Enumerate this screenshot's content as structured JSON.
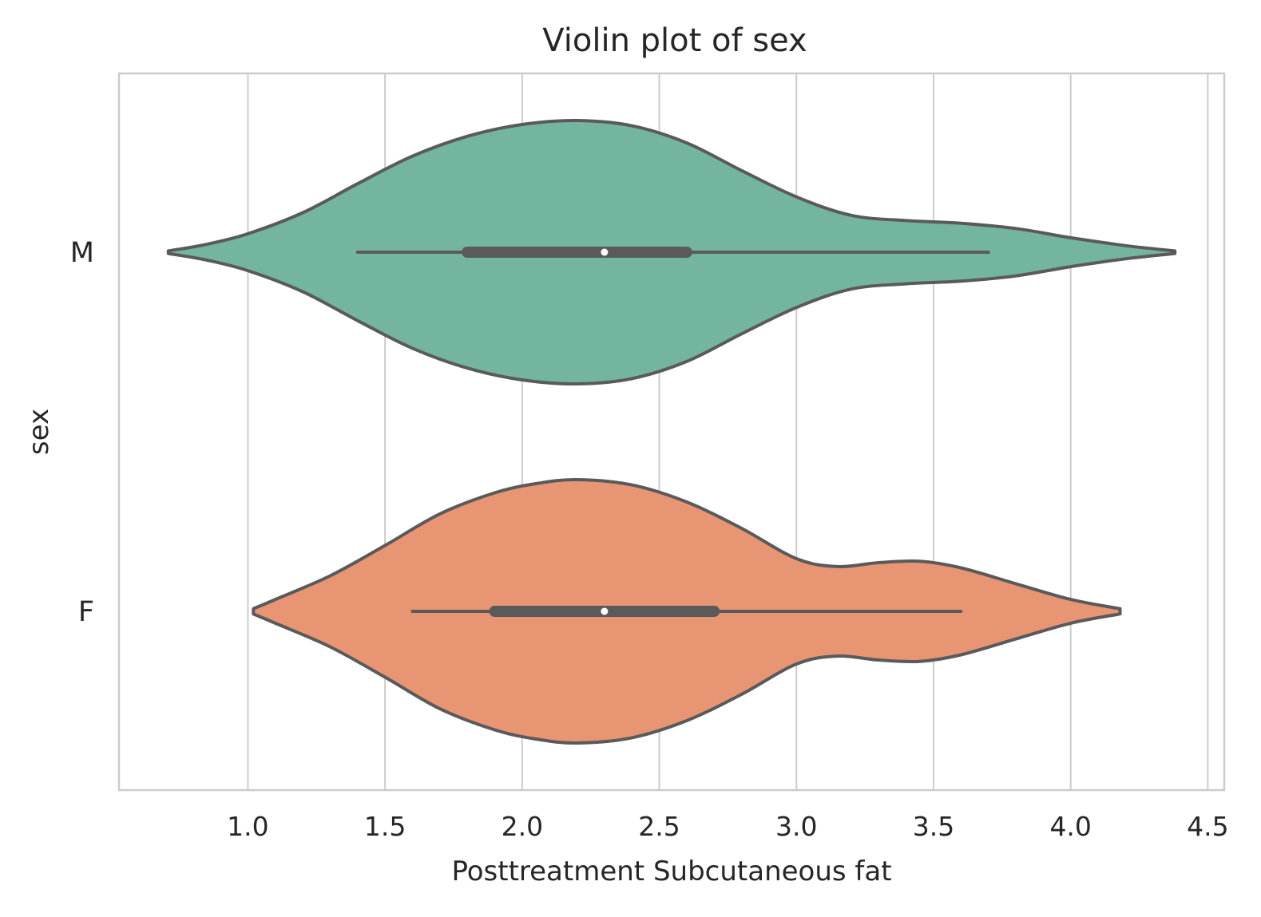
{
  "chart_data": {
    "type": "violin",
    "orientation": "horizontal",
    "title": "Violin plot of sex",
    "xlabel": "Posttreatment Subcutaneous fat",
    "ylabel": "sex",
    "xlim": [
      0.53,
      4.56
    ],
    "x_ticks": [
      "1.0",
      "1.5",
      "2.0",
      "2.5",
      "3.0",
      "3.5",
      "4.0",
      "4.5"
    ],
    "grid": "vertical",
    "categories": [
      "M",
      "F"
    ],
    "violins": [
      {
        "category": "M",
        "color": "#73b59f",
        "whisker": [
          1.4,
          3.7
        ],
        "quartiles": [
          1.8,
          2.6
        ],
        "median": 2.3,
        "density": [
          [
            0.71,
            0.01
          ],
          [
            0.85,
            0.06
          ],
          [
            1.0,
            0.14
          ],
          [
            1.2,
            0.3
          ],
          [
            1.4,
            0.52
          ],
          [
            1.6,
            0.73
          ],
          [
            1.8,
            0.88
          ],
          [
            2.0,
            0.97
          ],
          [
            2.2,
            1.0
          ],
          [
            2.4,
            0.96
          ],
          [
            2.6,
            0.83
          ],
          [
            2.8,
            0.62
          ],
          [
            3.0,
            0.42
          ],
          [
            3.2,
            0.28
          ],
          [
            3.4,
            0.24
          ],
          [
            3.6,
            0.22
          ],
          [
            3.8,
            0.18
          ],
          [
            4.0,
            0.11
          ],
          [
            4.2,
            0.05
          ],
          [
            4.38,
            0.01
          ]
        ]
      },
      {
        "category": "F",
        "color": "#e89574",
        "whisker": [
          1.6,
          3.6
        ],
        "quartiles": [
          1.9,
          2.7
        ],
        "median": 2.3,
        "density": [
          [
            1.02,
            0.02
          ],
          [
            1.1,
            0.09
          ],
          [
            1.3,
            0.27
          ],
          [
            1.5,
            0.5
          ],
          [
            1.7,
            0.74
          ],
          [
            1.9,
            0.9
          ],
          [
            2.05,
            0.97
          ],
          [
            2.2,
            1.0
          ],
          [
            2.4,
            0.96
          ],
          [
            2.6,
            0.83
          ],
          [
            2.8,
            0.63
          ],
          [
            3.0,
            0.4
          ],
          [
            3.15,
            0.34
          ],
          [
            3.3,
            0.37
          ],
          [
            3.45,
            0.38
          ],
          [
            3.6,
            0.33
          ],
          [
            3.8,
            0.21
          ],
          [
            4.0,
            0.09
          ],
          [
            4.18,
            0.02
          ]
        ]
      }
    ]
  }
}
